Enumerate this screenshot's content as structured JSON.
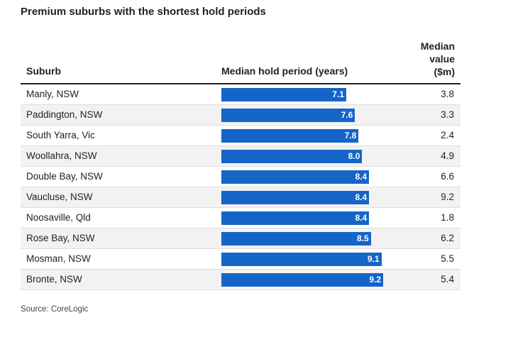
{
  "title": "Premium suburbs with the shortest hold periods",
  "headers": {
    "suburb": "Suburb",
    "hold": "Median hold period (years)",
    "value_line1": "Median",
    "value_line2": "value",
    "value_line3": "($m)"
  },
  "source": "Source: CoreLogic",
  "colors": {
    "bar": "#1565c9",
    "row_alt": "#f2f2f2"
  },
  "chart_data": {
    "type": "bar",
    "title": "Premium suburbs with the shortest hold periods",
    "xlabel": "Median hold period (years)",
    "ylabel": "Suburb",
    "categories": [
      "Manly, NSW",
      "Paddington, NSW",
      "South Yarra, Vic",
      "Woollahra, NSW",
      "Double Bay, NSW",
      "Vaucluse, NSW",
      "Noosaville, Qld",
      "Rose Bay, NSW",
      "Mosman, NSW",
      "Bronte, NSW"
    ],
    "series": [
      {
        "name": "Median hold period (years)",
        "values": [
          7.1,
          7.6,
          7.8,
          8.0,
          8.4,
          8.4,
          8.4,
          8.5,
          9.1,
          9.2
        ]
      }
    ],
    "value_column": {
      "name": "Median value ($m)",
      "values": [
        3.8,
        3.3,
        2.4,
        4.9,
        6.6,
        9.2,
        1.8,
        6.2,
        5.5,
        5.4
      ]
    },
    "rows": [
      {
        "suburb": "Manly, NSW",
        "hold": "7.1",
        "value": "3.8"
      },
      {
        "suburb": "Paddington, NSW",
        "hold": "7.6",
        "value": "3.3"
      },
      {
        "suburb": "South Yarra, Vic",
        "hold": "7.8",
        "value": "2.4"
      },
      {
        "suburb": "Woollahra, NSW",
        "hold": "8.0",
        "value": "4.9"
      },
      {
        "suburb": "Double Bay, NSW",
        "hold": "8.4",
        "value": "6.6"
      },
      {
        "suburb": "Vaucluse, NSW",
        "hold": "8.4",
        "value": "9.2"
      },
      {
        "suburb": "Noosaville, Qld",
        "hold": "8.4",
        "value": "1.8"
      },
      {
        "suburb": "Rose Bay, NSW",
        "hold": "8.5",
        "value": "6.2"
      },
      {
        "suburb": "Mosman, NSW",
        "hold": "9.1",
        "value": "5.5"
      },
      {
        "suburb": "Bronte, NSW",
        "hold": "9.2",
        "value": "5.4"
      }
    ],
    "xlim": [
      0,
      9.2
    ],
    "grid": false,
    "legend": "none"
  }
}
